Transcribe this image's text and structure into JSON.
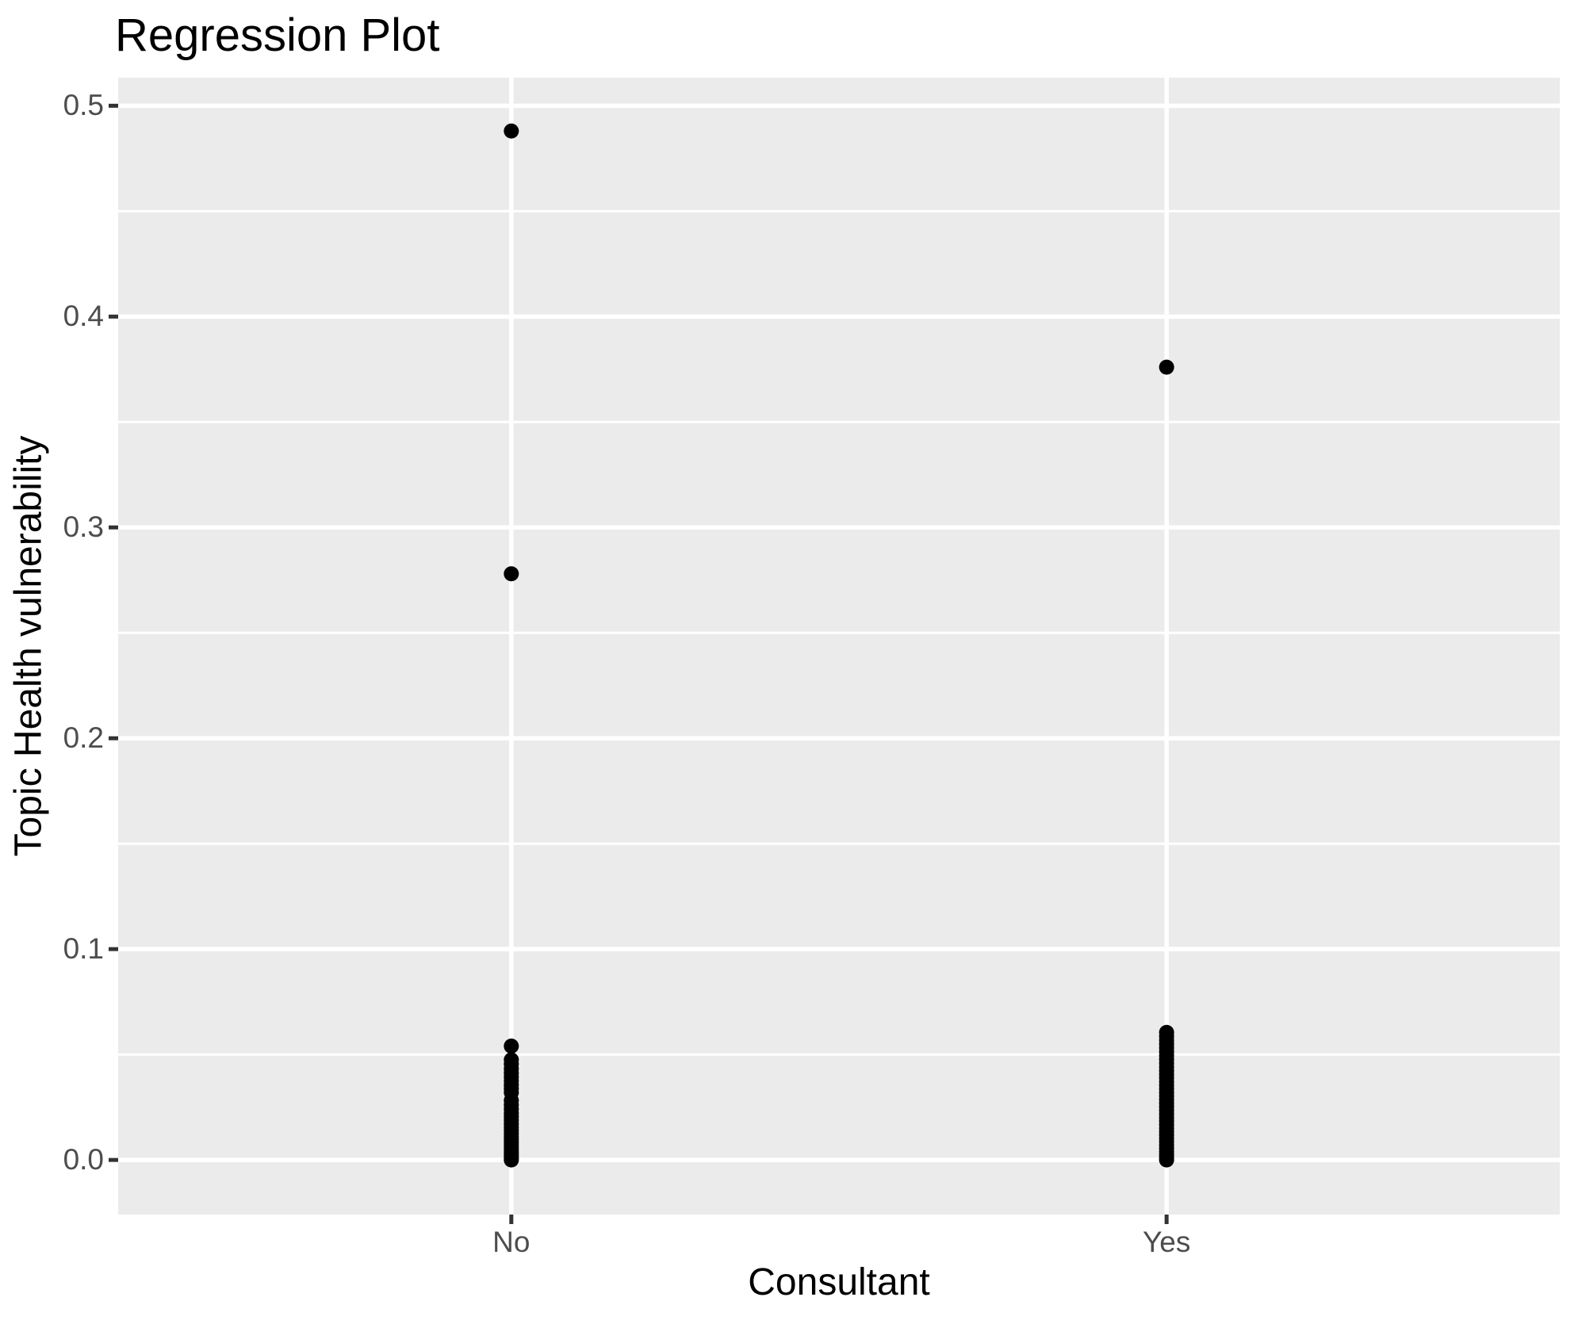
{
  "chart_data": {
    "type": "scatter",
    "title": "Regression Plot",
    "xlabel": "Consultant",
    "ylabel": "Topic Health vulnerability",
    "x_type": "categorical",
    "categories": [
      "No",
      "Yes"
    ],
    "y_ticks": [
      0.0,
      0.1,
      0.2,
      0.3,
      0.4,
      0.5
    ],
    "y_tick_labels": [
      "0.0",
      "0.1",
      "0.2",
      "0.3",
      "0.4",
      "0.5"
    ],
    "y_minor_gridlines": [
      0.05,
      0.15,
      0.25,
      0.35,
      0.45
    ],
    "ylim": [
      -0.026,
      0.513
    ],
    "grid_on": true,
    "legend": "none",
    "colors": {
      "panel_background": "#EBEBEB",
      "gridline": "#FFFFFF",
      "point": "#000000",
      "tick_mark": "#333333",
      "tick_label_text": "#4D4D4D",
      "title_text": "#000000",
      "axis_title_text": "#000000",
      "figure_background": "#FFFFFF"
    },
    "series": [
      {
        "name": "No",
        "values": [
          0.488,
          0.278,
          0.054,
          0.0475,
          0.0455,
          0.0433,
          0.0412,
          0.0394,
          0.0375,
          0.0356,
          0.0338,
          0.032,
          0.0282,
          0.0261,
          0.0241,
          0.0222,
          0.0205,
          0.0188,
          0.0171,
          0.0155,
          0.014,
          0.0125,
          0.011,
          0.0096,
          0.0082,
          0.0068,
          0.0055,
          0.0042,
          0.003,
          0.0019,
          0.0009,
          0.0
        ]
      },
      {
        "name": "Yes",
        "values": [
          0.376,
          0.0605,
          0.0586,
          0.0567,
          0.0549,
          0.0531,
          0.0513,
          0.0495,
          0.0477,
          0.0459,
          0.0441,
          0.0423,
          0.0405,
          0.0388,
          0.0371,
          0.0354,
          0.0337,
          0.032,
          0.0303,
          0.0286,
          0.0269,
          0.0252,
          0.0235,
          0.0218,
          0.0201,
          0.0184,
          0.0167,
          0.015,
          0.0134,
          0.0118,
          0.0102,
          0.0086,
          0.007,
          0.0055,
          0.004,
          0.0026,
          0.0013,
          0.0
        ]
      }
    ]
  }
}
